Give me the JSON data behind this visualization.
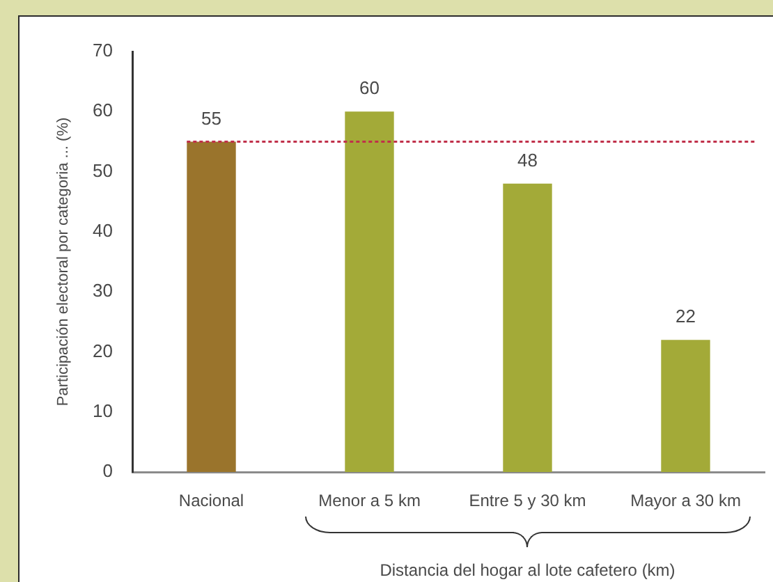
{
  "chart_data": {
    "type": "bar",
    "categories": [
      "Nacional",
      "Menor a 5 km",
      "Entre 5 y 30 km",
      "Mayor a 30 km"
    ],
    "values": [
      55,
      60,
      48,
      22
    ],
    "colors": [
      "#9a742c",
      "#a3aa38",
      "#a3aa38",
      "#a3aa38"
    ],
    "ylim": [
      0,
      70
    ],
    "yticks": [
      0,
      10,
      20,
      30,
      40,
      50,
      60,
      70
    ],
    "ylabel": "Participación electoral por categoria ... (%)",
    "xlabel": "Distancia del hogar al lote cafetero (km)",
    "ref_lines": [
      {
        "axis": "y",
        "value": 55,
        "color": "#c0304a",
        "line_style": "dotted"
      }
    ],
    "data_labels": true,
    "grid": false,
    "legend": false
  }
}
